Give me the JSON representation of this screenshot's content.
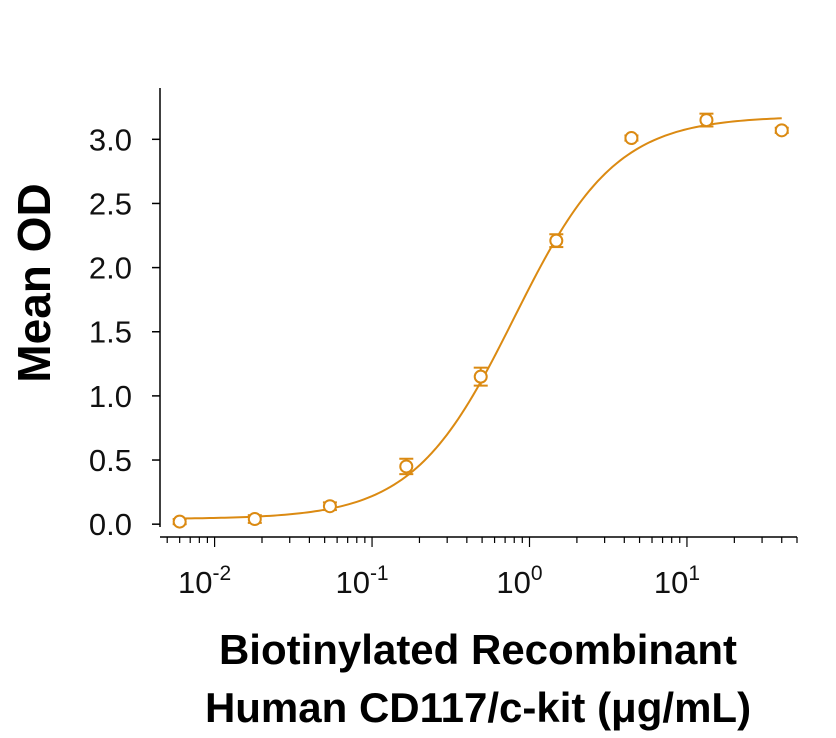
{
  "chart_data": {
    "type": "scatter",
    "title": "",
    "xlabel_lines": [
      "Biotinylated Recombinant",
      "Human CD117/c-kit (μg/mL)"
    ],
    "ylabel": "Mean OD",
    "x_scale": "log",
    "xlim": [
      0.0045,
      50
    ],
    "ylim": [
      -0.1,
      3.4
    ],
    "y_ticks": [
      "0.0",
      "0.5",
      "1.0",
      "1.5",
      "2.0",
      "2.5",
      "3.0"
    ],
    "x_ticks": [
      {
        "value": 0.01,
        "base": "10",
        "exp": "-2"
      },
      {
        "value": 0.1,
        "base": "10",
        "exp": "-1"
      },
      {
        "value": 1,
        "base": "10",
        "exp": "0"
      },
      {
        "value": 10,
        "base": "10",
        "exp": "1"
      }
    ],
    "series": [
      {
        "name": "Mean OD",
        "color": "#DB8A12",
        "points": [
          {
            "x": 0.006,
            "y": 0.02,
            "err": 0.02
          },
          {
            "x": 0.018,
            "y": 0.04,
            "err": 0.03
          },
          {
            "x": 0.054,
            "y": 0.14,
            "err": 0.03
          },
          {
            "x": 0.165,
            "y": 0.45,
            "err": 0.06
          },
          {
            "x": 0.49,
            "y": 1.15,
            "err": 0.07
          },
          {
            "x": 1.48,
            "y": 2.21,
            "err": 0.05
          },
          {
            "x": 4.44,
            "y": 3.01,
            "err": 0.02
          },
          {
            "x": 13.3,
            "y": 3.15,
            "err": 0.05
          },
          {
            "x": 40.0,
            "y": 3.07,
            "err": 0.02
          }
        ]
      }
    ],
    "fit_curve": {
      "model": "4PL",
      "bottom": 0.04,
      "top": 3.18,
      "ec50": 0.8,
      "hill": 1.35,
      "x_range": [
        0.006,
        40.0
      ]
    }
  }
}
